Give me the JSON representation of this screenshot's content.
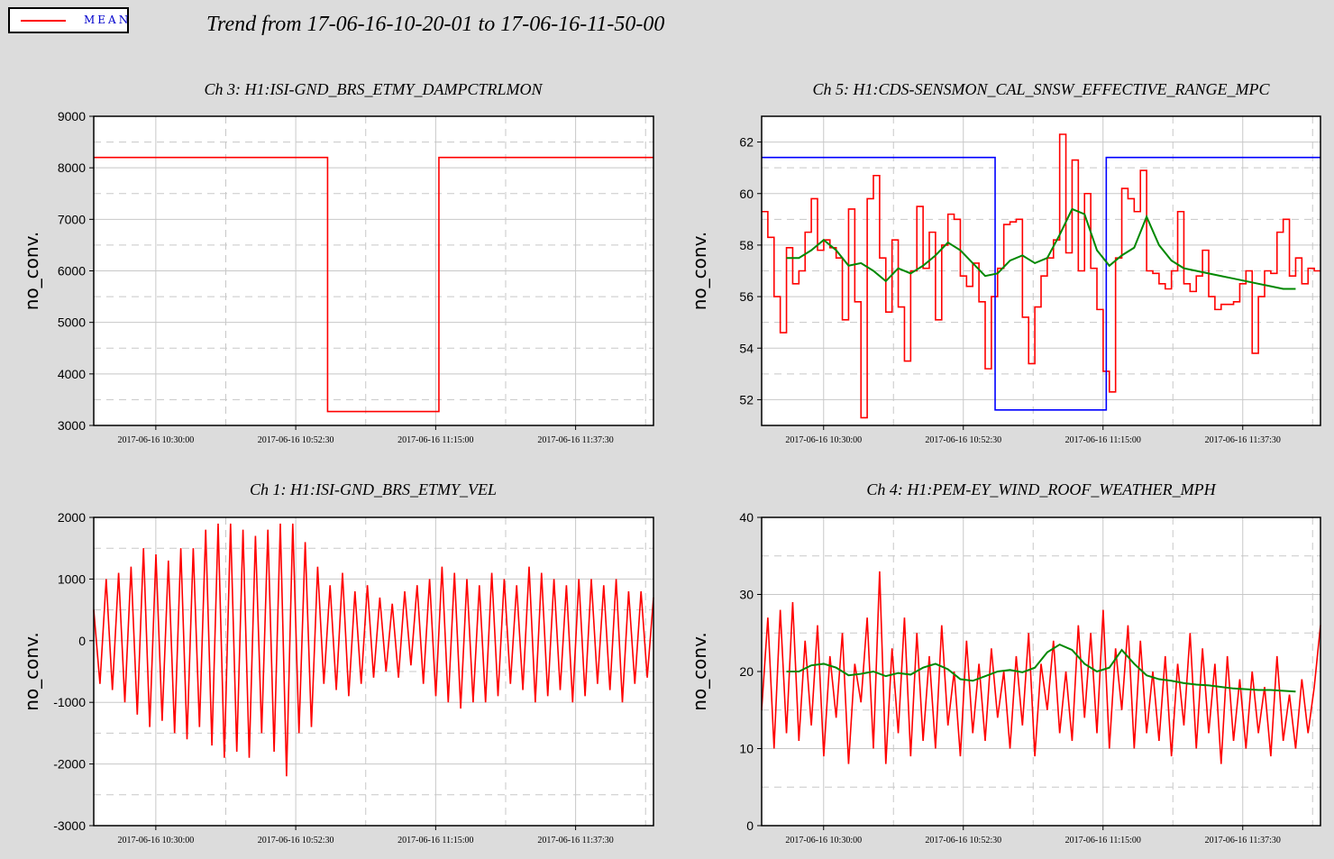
{
  "legend": {
    "label": "MEAN",
    "color": "#ff0000"
  },
  "title": "Trend from 17-06-16-10-20-01 to 17-06-16-11-50-00",
  "colors": {
    "series": "#ff0000",
    "mean_overlay": "#008800",
    "state": "#0000ff",
    "grid": "#c8c8c8",
    "background": "#dcdcdc"
  },
  "chart_data": [
    {
      "type": "line",
      "title": "Ch 3: H1:ISI-GND_BRS_ETMY_DAMPCTRLMON",
      "ylabel": "no_conv.",
      "ylim": [
        3000,
        9000
      ],
      "yticks": [
        3000,
        4000,
        5000,
        6000,
        7000,
        8000,
        9000
      ],
      "xticks": [
        "2017-06-16 10:30:00",
        "2017-06-16 10:52:30",
        "2017-06-16 11:15:00",
        "2017-06-16 11:37:30"
      ],
      "xunits": "minutes from 2017-06-16 10:20:01",
      "xlim": [
        0,
        90
      ],
      "grid": true,
      "series": [
        {
          "color": "#ff0000",
          "step": true,
          "x": [
            0,
            37.5,
            37.6,
            55.4,
            55.5,
            90
          ],
          "y": [
            8200,
            8200,
            3270,
            3270,
            8200,
            8200
          ]
        }
      ]
    },
    {
      "type": "line",
      "title": "Ch 5: H1:CDS-SENSMON_CAL_SNSW_EFFECTIVE_RANGE_MPC",
      "ylabel": "no_conv.",
      "ylim": [
        51,
        63
      ],
      "yticks": [
        52,
        54,
        56,
        58,
        60,
        62
      ],
      "xticks": [
        "2017-06-16 10:30:00",
        "2017-06-16 10:52:30",
        "2017-06-16 11:15:00",
        "2017-06-16 11:37:30"
      ],
      "xunits": "minutes from 2017-06-16 10:20:01",
      "xlim": [
        0,
        90
      ],
      "grid": true,
      "series": [
        {
          "color": "#ff0000",
          "step": true,
          "x": [
            0,
            1,
            2,
            3,
            4,
            5,
            6,
            7,
            8,
            9,
            10,
            11,
            12,
            13,
            14,
            15,
            16,
            17,
            18,
            19,
            20,
            21,
            22,
            23,
            24,
            25,
            26,
            27,
            28,
            29,
            30,
            31,
            32,
            33,
            34,
            35,
            36,
            37,
            38,
            39,
            40,
            41,
            42,
            43,
            44,
            45,
            46,
            47,
            48,
            49,
            50,
            51,
            52,
            53,
            54,
            55,
            56,
            57,
            58,
            59,
            60,
            61,
            62,
            63,
            64,
            65,
            66,
            67,
            68,
            69,
            70,
            71,
            72,
            73,
            74,
            75,
            76,
            77,
            78,
            79,
            80,
            81,
            82,
            83,
            84,
            85,
            86,
            87,
            88,
            89
          ],
          "y": [
            59.3,
            58.3,
            56.0,
            54.6,
            57.9,
            56.5,
            57.0,
            58.5,
            59.8,
            57.8,
            58.2,
            57.9,
            57.5,
            55.1,
            59.4,
            55.8,
            51.3,
            59.8,
            60.7,
            57.5,
            55.4,
            58.2,
            55.6,
            53.5,
            57.0,
            59.5,
            57.1,
            58.5,
            55.1,
            58.0,
            59.2,
            59.0,
            56.8,
            56.4,
            57.3,
            55.8,
            53.2,
            56.0,
            57.1,
            58.8,
            58.9,
            59.0,
            55.2,
            53.4,
            55.6,
            56.8,
            57.5,
            58.2,
            62.3,
            57.7,
            61.3,
            57.0,
            60.0,
            57.1,
            55.5,
            53.1,
            52.3,
            57.5,
            60.2,
            59.8,
            59.3,
            60.9,
            57.0,
            56.9,
            56.5,
            56.3,
            57.0,
            59.3,
            56.5,
            56.2,
            56.8,
            57.8,
            56.0,
            55.5,
            55.7,
            55.7,
            55.8,
            56.5,
            57.0,
            53.8,
            56.0,
            57.0,
            56.9,
            58.5,
            59.0,
            56.8,
            57.5,
            56.5,
            57.1,
            57.0
          ]
        },
        {
          "color": "#0000ff",
          "step": true,
          "x": [
            0,
            37.5,
            37.6,
            55.4,
            55.5,
            90
          ],
          "y": [
            61.4,
            61.4,
            51.6,
            51.6,
            61.4,
            61.4
          ]
        },
        {
          "color": "#008800",
          "step": false,
          "x": [
            4,
            6,
            8,
            10,
            12,
            14,
            16,
            18,
            20,
            22,
            24,
            26,
            28,
            30,
            32,
            34,
            36,
            38,
            40,
            42,
            44,
            46,
            48,
            50,
            52,
            54,
            56,
            58,
            60,
            62,
            64,
            66,
            68,
            70,
            72,
            74,
            76,
            78,
            80,
            82,
            84,
            86
          ],
          "y": [
            57.5,
            57.5,
            57.8,
            58.2,
            57.8,
            57.2,
            57.3,
            57.0,
            56.6,
            57.1,
            56.9,
            57.2,
            57.6,
            58.1,
            57.8,
            57.3,
            56.8,
            56.9,
            57.4,
            57.6,
            57.3,
            57.5,
            58.4,
            59.4,
            59.2,
            57.8,
            57.2,
            57.6,
            57.9,
            59.1,
            58.0,
            57.4,
            57.1,
            57.0,
            56.9,
            56.8,
            56.7,
            56.6,
            56.5,
            56.4,
            56.3,
            56.3
          ]
        }
      ]
    },
    {
      "type": "line",
      "title": "Ch 1: H1:ISI-GND_BRS_ETMY_VEL",
      "ylabel": "no_conv.",
      "ylim": [
        -3000,
        2000
      ],
      "yticks": [
        -3000,
        -2000,
        -1000,
        0,
        1000,
        2000
      ],
      "xticks": [
        "2017-06-16 10:30:00",
        "2017-06-16 10:52:30",
        "2017-06-16 11:15:00",
        "2017-06-16 11:37:30"
      ],
      "xunits": "minutes from 2017-06-16 10:20:01",
      "xlim": [
        0,
        90
      ],
      "grid": true,
      "series": [
        {
          "color": "#ff0000",
          "step": false,
          "x": [
            0,
            1,
            2,
            3,
            4,
            5,
            6,
            7,
            8,
            9,
            10,
            11,
            12,
            13,
            14,
            15,
            16,
            17,
            18,
            19,
            20,
            21,
            22,
            23,
            24,
            25,
            26,
            27,
            28,
            29,
            30,
            31,
            32,
            33,
            34,
            35,
            36,
            37,
            38,
            39,
            40,
            41,
            42,
            43,
            44,
            45,
            46,
            47,
            48,
            49,
            50,
            51,
            52,
            53,
            54,
            55,
            56,
            57,
            58,
            59,
            60,
            61,
            62,
            63,
            64,
            65,
            66,
            67,
            68,
            69,
            70,
            71,
            72,
            73,
            74,
            75,
            76,
            77,
            78,
            79,
            80,
            81,
            82,
            83,
            84,
            85,
            86,
            87,
            88,
            89,
            90
          ],
          "y": [
            500,
            -700,
            1000,
            -800,
            1100,
            -1000,
            1200,
            -1200,
            1500,
            -1400,
            1400,
            -1300,
            1300,
            -1500,
            1500,
            -1600,
            1500,
            -1400,
            1800,
            -1700,
            1900,
            -1900,
            1900,
            -1800,
            1800,
            -1900,
            1700,
            -1500,
            1800,
            -1800,
            1900,
            -2200,
            1900,
            -1500,
            1600,
            -1400,
            1200,
            -700,
            900,
            -800,
            1100,
            -900,
            800,
            -700,
            900,
            -600,
            700,
            -500,
            600,
            -600,
            800,
            -400,
            900,
            -700,
            1000,
            -900,
            1200,
            -1000,
            1100,
            -1100,
            1000,
            -1000,
            900,
            -1000,
            1100,
            -900,
            1000,
            -700,
            900,
            -800,
            1200,
            -1000,
            1100,
            -900,
            1000,
            -800,
            900,
            -1000,
            1000,
            -900,
            1000,
            -700,
            900,
            -800,
            1000,
            -1000,
            800,
            -700,
            800,
            -600,
            700
          ]
        }
      ]
    },
    {
      "type": "line",
      "title": "Ch 4: H1:PEM-EY_WIND_ROOF_WEATHER_MPH",
      "ylabel": "no_conv.",
      "ylim": [
        0,
        40
      ],
      "yticks": [
        0,
        10,
        20,
        30,
        40
      ],
      "xticks": [
        "2017-06-16 10:30:00",
        "2017-06-16 10:52:30",
        "2017-06-16 11:15:00",
        "2017-06-16 11:37:30"
      ],
      "xunits": "minutes from 2017-06-16 10:20:01",
      "xlim": [
        0,
        90
      ],
      "grid": true,
      "series": [
        {
          "color": "#ff0000",
          "step": false,
          "x": [
            0,
            1,
            2,
            3,
            4,
            5,
            6,
            7,
            8,
            9,
            10,
            11,
            12,
            13,
            14,
            15,
            16,
            17,
            18,
            19,
            20,
            21,
            22,
            23,
            24,
            25,
            26,
            27,
            28,
            29,
            30,
            31,
            32,
            33,
            34,
            35,
            36,
            37,
            38,
            39,
            40,
            41,
            42,
            43,
            44,
            45,
            46,
            47,
            48,
            49,
            50,
            51,
            52,
            53,
            54,
            55,
            56,
            57,
            58,
            59,
            60,
            61,
            62,
            63,
            64,
            65,
            66,
            67,
            68,
            69,
            70,
            71,
            72,
            73,
            74,
            75,
            76,
            77,
            78,
            79,
            80,
            81,
            82,
            83,
            84,
            85,
            86,
            87,
            88,
            89,
            90
          ],
          "y": [
            15,
            27,
            10,
            28,
            12,
            29,
            11,
            24,
            13,
            26,
            9,
            22,
            14,
            25,
            8,
            21,
            16,
            27,
            10,
            33,
            8,
            23,
            12,
            27,
            9,
            25,
            11,
            22,
            10,
            26,
            13,
            20,
            9,
            24,
            12,
            21,
            11,
            23,
            14,
            20,
            10,
            22,
            13,
            25,
            9,
            21,
            15,
            24,
            12,
            20,
            11,
            26,
            14,
            25,
            12,
            28,
            10,
            23,
            15,
            26,
            10,
            24,
            12,
            20,
            11,
            22,
            9,
            21,
            13,
            25,
            10,
            23,
            12,
            21,
            8,
            22,
            11,
            19,
            10,
            20,
            12,
            18,
            9,
            22,
            11,
            17,
            10,
            19,
            12,
            18,
            26
          ]
        },
        {
          "color": "#008800",
          "step": false,
          "x": [
            4,
            6,
            8,
            10,
            12,
            14,
            16,
            18,
            20,
            22,
            24,
            26,
            28,
            30,
            32,
            34,
            36,
            38,
            40,
            42,
            44,
            46,
            48,
            50,
            52,
            54,
            56,
            58,
            60,
            62,
            64,
            66,
            68,
            70,
            72,
            74,
            76,
            78,
            80,
            82,
            84,
            86
          ],
          "y": [
            20,
            20,
            20.8,
            21,
            20.5,
            19.5,
            19.7,
            20,
            19.4,
            19.8,
            19.6,
            20.5,
            21,
            20.3,
            19,
            18.8,
            19.4,
            20,
            20.2,
            19.9,
            20.5,
            22.5,
            23.5,
            22.8,
            21,
            20,
            20.5,
            22.8,
            21,
            19.5,
            19,
            18.8,
            18.5,
            18.3,
            18.2,
            18,
            17.8,
            17.7,
            17.6,
            17.6,
            17.5,
            17.4
          ]
        }
      ]
    }
  ]
}
